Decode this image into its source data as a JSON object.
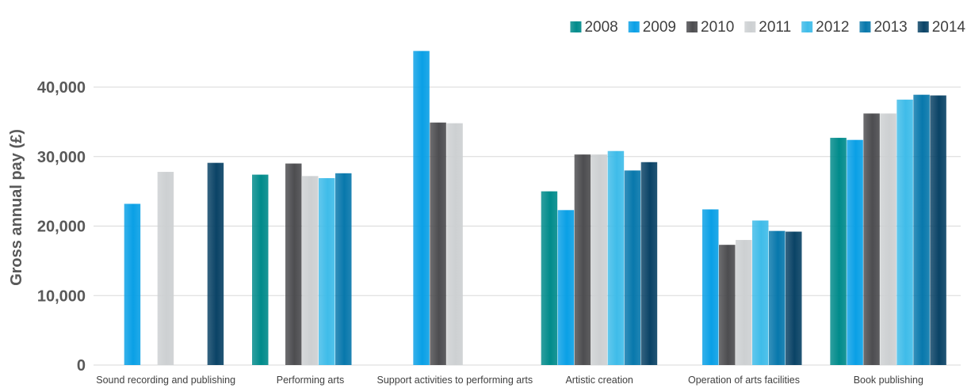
{
  "chart_data": {
    "type": "bar",
    "ylabel": "Gross annual pay (£)",
    "xlabel": "",
    "ylim": [
      0,
      45000
    ],
    "yticks": [
      0,
      10000,
      20000,
      30000,
      40000
    ],
    "ytick_labels": [
      "0",
      "10,000",
      "20,000",
      "30,000",
      "40,000"
    ],
    "grid": true,
    "legend_position": "top-right",
    "categories": [
      "Sound recording and publishing",
      "Performing arts",
      "Support activities to performing arts",
      "Artistic creation",
      "Operation of arts facilities",
      "Book publishing"
    ],
    "series": [
      {
        "name": "2008",
        "color": "#008b8b",
        "values": [
          null,
          27400,
          null,
          25000,
          null,
          32700
        ]
      },
      {
        "name": "2009",
        "color": "#0aa0e6",
        "values": [
          23200,
          null,
          45200,
          22300,
          22400,
          32400
        ]
      },
      {
        "name": "2010",
        "color": "#4d4d50",
        "values": [
          null,
          29000,
          34900,
          30300,
          17300,
          36200
        ]
      },
      {
        "name": "2011",
        "color": "#cdd0d2",
        "values": [
          27800,
          27200,
          34800,
          30300,
          18000,
          36200
        ]
      },
      {
        "name": "2012",
        "color": "#3fbce9",
        "values": [
          null,
          26900,
          null,
          30800,
          20800,
          38200
        ]
      },
      {
        "name": "2013",
        "color": "#0878ac",
        "values": [
          null,
          27600,
          null,
          28000,
          19300,
          38900
        ]
      },
      {
        "name": "2014",
        "color": "#0a4366",
        "values": [
          29100,
          null,
          null,
          29200,
          19200,
          38800
        ]
      }
    ]
  }
}
